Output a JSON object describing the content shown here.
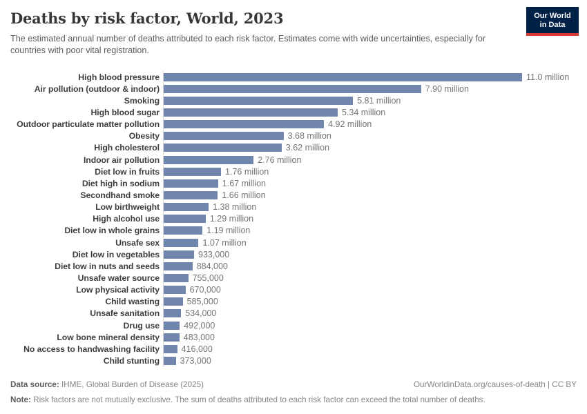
{
  "header": {
    "title": "Deaths by risk factor, World, 2023",
    "subtitle": "The estimated annual number of deaths attributed to each risk factor. Estimates come with wide uncertainties, especially for countries with poor vital registration.",
    "logo": {
      "line1": "Our World",
      "line2": "in Data",
      "bg_color": "#002147",
      "accent_color": "#d73a34"
    }
  },
  "chart_data": {
    "type": "bar",
    "orientation": "horizontal",
    "title": "Deaths by risk factor, World, 2023",
    "xlabel": "",
    "ylabel": "",
    "xlim": [
      0,
      11000000
    ],
    "grid": false,
    "legend": false,
    "bar_color": "#7186ad",
    "categories": [
      "High blood pressure",
      "Air pollution (outdoor & indoor)",
      "Smoking",
      "High blood sugar",
      "Outdoor particulate matter pollution",
      "Obesity",
      "High cholesterol",
      "Indoor air pollution",
      "Diet low in fruits",
      "Diet high in sodium",
      "Secondhand smoke",
      "Low birthweight",
      "High alcohol use",
      "Diet low in whole grains",
      "Unsafe sex",
      "Diet low in vegetables",
      "Diet low in nuts and seeds",
      "Unsafe water source",
      "Low physical activity",
      "Child wasting",
      "Unsafe sanitation",
      "Drug use",
      "Low bone mineral density",
      "No access to handwashing facility",
      "Child stunting"
    ],
    "values": [
      11000000,
      7900000,
      5810000,
      5340000,
      4920000,
      3680000,
      3620000,
      2760000,
      1760000,
      1670000,
      1660000,
      1380000,
      1290000,
      1190000,
      1070000,
      933000,
      884000,
      755000,
      670000,
      585000,
      534000,
      492000,
      483000,
      416000,
      373000
    ],
    "value_labels": [
      "11.0 million",
      "7.90 million",
      "5.81 million",
      "5.34 million",
      "4.92 million",
      "3.68 million",
      "3.62 million",
      "2.76 million",
      "1.76 million",
      "1.67 million",
      "1.66 million",
      "1.38 million",
      "1.29 million",
      "1.19 million",
      "1.07 million",
      "933,000",
      "884,000",
      "755,000",
      "670,000",
      "585,000",
      "534,000",
      "492,000",
      "483,000",
      "416,000",
      "373,000"
    ]
  },
  "footer": {
    "datasource_label": "Data source:",
    "datasource_text": " IHME, Global Burden of Disease (2025)",
    "link_text": "OurWorldinData.org/causes-of-death | CC BY",
    "note_label": "Note:",
    "note_text": " Risk factors are not mutually exclusive. The sum of deaths attributed to each risk factor can exceed the total number of deaths."
  }
}
